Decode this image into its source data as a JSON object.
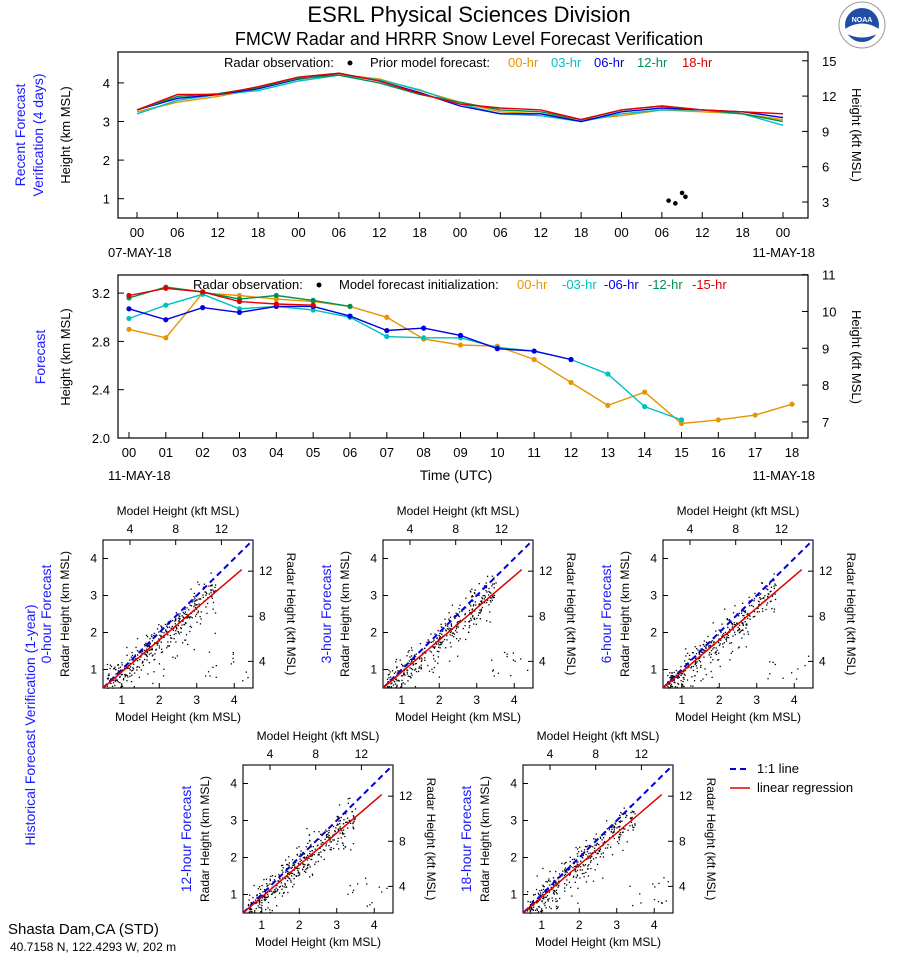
{
  "header": {
    "title": "ESRL Physical Sciences Division",
    "subtitle": "FMCW Radar and HRRR Snow Level Forecast Verification",
    "logo_text": "NOAA"
  },
  "colors": {
    "h00": "#e69500",
    "h03": "#00c0c0",
    "h06": "#0000e0",
    "h12": "#009050",
    "h18": "#e00000",
    "h15": "#e00000",
    "side_label": "#1a1aff"
  },
  "panel1": {
    "side_label_1": "Recent Forecast",
    "side_label_2": "Verification (4 days)",
    "ylabel_left": "Height (km MSL)",
    "ylabel_right": "Height (kft MSL)",
    "legend_obs": "Radar observation:",
    "legend_model": "Prior model forecast:",
    "legend_items": [
      "00-hr",
      "03-hr",
      "06-hr",
      "12-hr",
      "18-hr"
    ],
    "x_ticks": [
      "00",
      "06",
      "12",
      "18",
      "00",
      "06",
      "12",
      "18",
      "00",
      "06",
      "12",
      "18",
      "00",
      "06",
      "12",
      "18",
      "00"
    ],
    "date_left": "07-MAY-18",
    "date_right": "11-MAY-18",
    "y_ticks_left": [
      "1",
      "2",
      "3",
      "4"
    ],
    "y_ticks_right": [
      "3",
      "6",
      "9",
      "12",
      "15"
    ]
  },
  "panel2": {
    "side_label": "Forecast",
    "ylabel_left": "Height (km MSL)",
    "ylabel_right": "Height (kft MSL)",
    "xlabel": "Time (UTC)",
    "legend_obs": "Radar observation:",
    "legend_model": "Model forecast initialization:",
    "legend_items": [
      "00-hr",
      "-03-hr",
      "-06-hr",
      "-12-hr",
      "-15-hr"
    ],
    "x_ticks": [
      "00",
      "01",
      "02",
      "03",
      "04",
      "05",
      "06",
      "07",
      "08",
      "09",
      "10",
      "11",
      "12",
      "13",
      "14",
      "15",
      "16",
      "17",
      "18"
    ],
    "date_left": "11-MAY-18",
    "date_right": "11-MAY-18",
    "y_ticks_left": [
      "2.0",
      "2.4",
      "2.8",
      "3.2"
    ],
    "y_ticks_right": [
      "7",
      "8",
      "9",
      "10",
      "11"
    ]
  },
  "scatter": {
    "side_label": "Historical Forecast Verification (1-year)",
    "top_label": "Model Height (kft MSL)",
    "bottom_label": "Model Height (km MSL)",
    "left_label": "Radar Height (km MSL)",
    "right_label": "Radar Height (kft MSL)",
    "panels": [
      {
        "label": "0-hour Forecast"
      },
      {
        "label": "3-hour Forecast"
      },
      {
        "label": "6-hour Forecast"
      },
      {
        "label": "12-hour Forecast"
      },
      {
        "label": "18-hour Forecast"
      }
    ],
    "ticks_km": [
      "1",
      "2",
      "3",
      "4"
    ],
    "ticks_kft": [
      "4",
      "8",
      "12"
    ],
    "legend_one_to_one": "1:1 line",
    "legend_regression": "linear regression"
  },
  "footer": {
    "station": "Shasta Dam,CA (STD)",
    "coords": "40.7158 N, 122.4293 W, 202 m"
  },
  "chart_data": [
    {
      "type": "line",
      "title": "Recent Forecast Verification (4 days)",
      "xlabel": "",
      "ylabel": "Height (km MSL)",
      "y2label": "Height (kft MSL)",
      "ylim": [
        0.5,
        4.8
      ],
      "x_hours_from_start": [
        0,
        6,
        12,
        18,
        24,
        30,
        36,
        42,
        48,
        54,
        60,
        66,
        72,
        78,
        84,
        90,
        96
      ],
      "observations": {
        "x_hours": [
          79,
          80,
          81,
          81.5
        ],
        "y": [
          0.95,
          0.88,
          1.15,
          1.05
        ]
      },
      "series": [
        {
          "name": "00-hr",
          "color": "#e69500",
          "values": [
            3.25,
            3.5,
            3.65,
            3.85,
            4.1,
            4.22,
            4.1,
            3.8,
            3.5,
            3.25,
            3.2,
            3.05,
            3.15,
            3.3,
            3.25,
            3.2,
            3.05
          ]
        },
        {
          "name": "03-hr",
          "color": "#00c0c0",
          "values": [
            3.2,
            3.55,
            3.7,
            3.8,
            4.05,
            4.2,
            4.08,
            3.82,
            3.45,
            3.2,
            3.15,
            3.0,
            3.2,
            3.3,
            3.3,
            3.2,
            2.9
          ]
        },
        {
          "name": "06-hr",
          "color": "#0000e0",
          "values": [
            3.3,
            3.6,
            3.7,
            3.85,
            4.1,
            4.25,
            4.05,
            3.75,
            3.4,
            3.2,
            3.2,
            3.0,
            3.25,
            3.35,
            3.3,
            3.25,
            3.1
          ]
        },
        {
          "name": "12-hr",
          "color": "#009050",
          "values": [
            3.3,
            3.65,
            3.72,
            3.88,
            4.12,
            4.2,
            4.0,
            3.7,
            3.5,
            3.3,
            3.25,
            3.05,
            3.3,
            3.4,
            3.3,
            3.2,
            3.0
          ]
        },
        {
          "name": "18-hr",
          "color": "#e00000",
          "values": [
            3.3,
            3.7,
            3.7,
            3.9,
            4.15,
            4.25,
            4.05,
            3.72,
            3.45,
            3.35,
            3.3,
            3.05,
            3.3,
            3.4,
            3.3,
            3.25,
            3.2
          ]
        }
      ]
    },
    {
      "type": "line",
      "title": "Forecast",
      "xlabel": "Time (UTC)",
      "ylabel": "Height (km MSL)",
      "y2label": "Height (kft MSL)",
      "ylim": [
        2.0,
        3.35
      ],
      "x": [
        0,
        1,
        2,
        3,
        4,
        5,
        6,
        7,
        8,
        9,
        10,
        11,
        12,
        13,
        14,
        15,
        16,
        17,
        18
      ],
      "series": [
        {
          "name": "00-hr",
          "color": "#e69500",
          "values": [
            2.9,
            2.83,
            3.2,
            3.18,
            3.15,
            3.13,
            3.09,
            3.0,
            2.82,
            2.77,
            2.76,
            2.65,
            2.46,
            2.27,
            2.38,
            2.12,
            2.15,
            2.19,
            2.28
          ]
        },
        {
          "name": "-03-hr",
          "color": "#00c0c0",
          "values": [
            2.99,
            3.1,
            3.19,
            3.07,
            3.09,
            3.06,
            3.0,
            2.84,
            2.83,
            2.83,
            2.75,
            2.72,
            2.65,
            2.53,
            2.26,
            2.15,
            null,
            null,
            null
          ]
        },
        {
          "name": "-06-hr",
          "color": "#0000e0",
          "values": [
            3.07,
            2.98,
            3.08,
            3.04,
            3.09,
            3.09,
            3.01,
            2.89,
            2.91,
            2.85,
            2.74,
            2.72,
            2.65,
            null,
            null,
            null,
            null,
            null,
            null
          ]
        },
        {
          "name": "-12-hr",
          "color": "#009050",
          "values": [
            3.16,
            3.25,
            3.21,
            3.15,
            3.18,
            3.14,
            3.09,
            null,
            null,
            null,
            null,
            null,
            null,
            null,
            null,
            null,
            null,
            null,
            null
          ]
        },
        {
          "name": "-15-hr",
          "color": "#e00000",
          "values": [
            3.18,
            3.24,
            3.21,
            3.13,
            3.11,
            3.1,
            null,
            null,
            null,
            null,
            null,
            null,
            null,
            null,
            null,
            null,
            null,
            null,
            null
          ]
        }
      ]
    },
    {
      "type": "scatter",
      "title": "Historical Forecast Verification (1-year)",
      "xlabel": "Model Height (km MSL)",
      "ylabel": "Radar Height (km MSL)",
      "xlim": [
        0.5,
        4.5
      ],
      "ylim": [
        0.5,
        4.5
      ],
      "panels": [
        "0-hour Forecast",
        "3-hour Forecast",
        "6-hour Forecast",
        "12-hour Forecast",
        "18-hour Forecast"
      ],
      "one_to_one_line": {
        "x": [
          0.5,
          4.5
        ],
        "y": [
          0.5,
          4.5
        ]
      },
      "regression_line": {
        "x": [
          0.5,
          4.2
        ],
        "y": [
          0.5,
          3.7
        ]
      }
    }
  ]
}
